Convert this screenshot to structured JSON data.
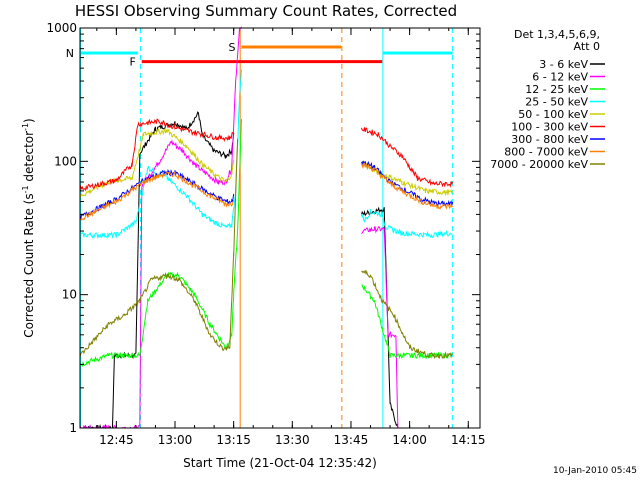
{
  "chart_data": {
    "type": "line",
    "title": "HESSI Observing Summary Count Rates, Corrected",
    "xlabel": "Start Time (21-Oct-04 12:35:42)",
    "ylabel_main": "Corrected Count Rate (s",
    "ylabel_sup1": "-1",
    "ylabel_mid": " detector",
    "ylabel_sup2": "-1",
    "ylabel_end": ")",
    "footer": "10-Jan-2010 05:45",
    "yscale": "log",
    "xlim": [
      "12:35:42",
      "14:18:00"
    ],
    "ylim": [
      1,
      1000
    ],
    "x_ticks": [
      {
        "t": "12:45",
        "label": "12:45"
      },
      {
        "t": "13:00",
        "label": "13:00"
      },
      {
        "t": "13:15",
        "label": "13:15"
      },
      {
        "t": "13:30",
        "label": "13:30"
      },
      {
        "t": "13:45",
        "label": "13:45"
      },
      {
        "t": "14:00",
        "label": "14:00"
      },
      {
        "t": "14:15",
        "label": "14:15"
      }
    ],
    "y_ticks": [
      {
        "v": 1,
        "label": "1"
      },
      {
        "v": 10,
        "label": "10"
      },
      {
        "v": 100,
        "label": "100"
      },
      {
        "v": 1000,
        "label": "1000"
      }
    ],
    "legend": {
      "header1": "Det 1,3,4,5,6,9,",
      "header2": "Att 0"
    },
    "series": [
      {
        "name": "3 - 6 keV",
        "color": "#000000",
        "segments": [
          [
            [
              "12:35:42",
              1
            ],
            [
              "12:44:00",
              1
            ],
            [
              "12:44:30",
              3.5
            ],
            [
              "12:50:00",
              3.5
            ],
            [
              "12:51:00",
              115
            ],
            [
              "12:55:00",
              175
            ],
            [
              "13:00:00",
              195
            ],
            [
              "13:03:00",
              175
            ],
            [
              "13:06:00",
              230
            ],
            [
              "13:07:00",
              155
            ],
            [
              "13:10:00",
              120
            ],
            [
              "13:13:00",
              110
            ],
            [
              "13:14:30",
              120
            ],
            [
              "13:15:00",
              160
            ]
          ],
          [
            [
              "13:47:40",
              40
            ],
            [
              "13:53:30",
              44
            ],
            [
              "13:54:00",
              15
            ],
            [
              "13:55:00",
              1.5
            ],
            [
              "13:57:00",
              1
            ]
          ]
        ]
      },
      {
        "name": "6 - 12 keV",
        "color": "#ff00ff",
        "segments": [
          [
            [
              "12:35:42",
              1
            ],
            [
              "12:51:00",
              1
            ],
            [
              "12:51:30",
              65
            ],
            [
              "12:56:00",
              100
            ],
            [
              "12:59:00",
              140
            ],
            [
              "13:02:00",
              120
            ],
            [
              "13:05:00",
              95
            ],
            [
              "13:07:00",
              85
            ],
            [
              "13:11:00",
              70
            ],
            [
              "13:13:00",
              70
            ],
            [
              "13:14:30",
              90
            ],
            [
              "13:15:30",
              400
            ],
            [
              "13:16:30",
              950
            ],
            [
              "13:17:00",
              1000
            ]
          ],
          [
            [
              "13:47:40",
              30
            ],
            [
              "13:51:00",
              31
            ],
            [
              "13:53:30",
              31
            ],
            [
              "13:54:30",
              5
            ],
            [
              "13:56:30",
              5
            ],
            [
              "13:57:00",
              1
            ]
          ]
        ]
      },
      {
        "name": "12 - 25 keV",
        "color": "#00ff00",
        "segments": [
          [
            [
              "12:35:42",
              3
            ],
            [
              "12:43:00",
              3.5
            ],
            [
              "12:47:00",
              3.5
            ],
            [
              "12:51:00",
              3.5
            ],
            [
              "12:53:00",
              9
            ],
            [
              "12:58:00",
              14
            ],
            [
              "13:01:00",
              14
            ],
            [
              "13:05:00",
              10
            ],
            [
              "13:09:00",
              6
            ],
            [
              "13:13:00",
              4
            ],
            [
              "13:14:30",
              5
            ],
            [
              "13:15:00",
              10
            ],
            [
              "13:16:00",
              30
            ],
            [
              "13:17:00",
              200
            ]
          ],
          [
            [
              "13:47:40",
              12
            ],
            [
              "13:51:00",
              9
            ],
            [
              "13:55:00",
              3.5
            ],
            [
              "14:11:00",
              3.5
            ]
          ]
        ]
      },
      {
        "name": "25 - 50 keV",
        "color": "#00ffff",
        "segments": [
          [
            [
              "12:35:42",
              28
            ],
            [
              "12:45:00",
              28
            ],
            [
              "12:50:00",
              35
            ],
            [
              "12:53:00",
              90
            ],
            [
              "12:58:00",
              75
            ],
            [
              "13:03:00",
              55
            ],
            [
              "13:07:00",
              40
            ],
            [
              "13:10:00",
              35
            ],
            [
              "13:13:00",
              32
            ],
            [
              "13:14:30",
              33
            ],
            [
              "13:15:30",
              60
            ],
            [
              "13:16:30",
              300
            ],
            [
              "13:17:00",
              500
            ]
          ],
          [
            [
              "13:47:40",
              40
            ],
            [
              "13:48:30",
              36
            ],
            [
              "13:50:00",
              42
            ],
            [
              "13:53:00",
              40
            ],
            [
              "13:54:00",
              32
            ],
            [
              "13:58:00",
              29
            ],
            [
              "14:05:00",
              28
            ],
            [
              "14:11:00",
              29
            ]
          ]
        ]
      },
      {
        "name": "50 - 100 keV",
        "color": "#cccc00",
        "segments": [
          [
            [
              "12:35:42",
              55
            ],
            [
              "12:43:00",
              70
            ],
            [
              "12:49:00",
              75
            ],
            [
              "12:52:00",
              160
            ],
            [
              "12:58:00",
              170
            ],
            [
              "13:03:00",
              130
            ],
            [
              "13:07:00",
              95
            ],
            [
              "13:10:00",
              80
            ],
            [
              "13:13:00",
              70
            ],
            [
              "13:14:30",
              80
            ],
            [
              "13:15:00",
              100
            ]
          ],
          [
            [
              "13:47:40",
              100
            ],
            [
              "13:51:00",
              85
            ],
            [
              "13:53:00",
              78
            ],
            [
              "13:54:00",
              78
            ],
            [
              "13:58:00",
              70
            ],
            [
              "14:04:00",
              60
            ],
            [
              "14:11:00",
              58
            ]
          ]
        ]
      },
      {
        "name": "100 - 300 keV",
        "color": "#ff0000",
        "segments": [
          [
            [
              "12:35:42",
              62
            ],
            [
              "12:45:00",
              72
            ],
            [
              "12:49:00",
              95
            ],
            [
              "12:50:30",
              190
            ],
            [
              "12:56:00",
              200
            ],
            [
              "12:59:00",
              185
            ],
            [
              "13:03:00",
              170
            ],
            [
              "13:07:00",
              160
            ],
            [
              "13:11:00",
              150
            ],
            [
              "13:14:00",
              150
            ],
            [
              "13:15:00",
              165
            ]
          ],
          [
            [
              "13:47:40",
              175
            ],
            [
              "13:52:00",
              160
            ],
            [
              "13:55:00",
              130
            ],
            [
              "13:58:00",
              110
            ],
            [
              "14:02:00",
              75
            ],
            [
              "14:06:00",
              68
            ],
            [
              "14:11:00",
              68
            ]
          ]
        ]
      },
      {
        "name": "300 - 800 keV",
        "color": "#0000ff",
        "segments": [
          [
            [
              "12:35:42",
              38
            ],
            [
              "12:45:00",
              52
            ],
            [
              "12:52:00",
              72
            ],
            [
              "12:57:00",
              82
            ],
            [
              "13:00:00",
              82
            ],
            [
              "13:04:00",
              70
            ],
            [
              "13:09:00",
              57
            ],
            [
              "13:13:00",
              50
            ],
            [
              "13:14:30",
              50
            ],
            [
              "13:15:00",
              55
            ]
          ],
          [
            [
              "13:47:40",
              100
            ],
            [
              "13:51:00",
              90
            ],
            [
              "13:55:00",
              70
            ],
            [
              "13:58:00",
              63
            ],
            [
              "14:03:00",
              52
            ],
            [
              "14:07:00",
              48
            ],
            [
              "14:11:00",
              48
            ]
          ]
        ]
      },
      {
        "name": "800 - 7000 keV",
        "color": "#ff8000",
        "segments": [
          [
            [
              "12:35:42",
              37
            ],
            [
              "12:45:00",
              50
            ],
            [
              "12:52:00",
              70
            ],
            [
              "12:57:00",
              80
            ],
            [
              "13:00:00",
              80
            ],
            [
              "13:04:00",
              68
            ],
            [
              "13:09:00",
              55
            ],
            [
              "13:13:00",
              48
            ],
            [
              "13:14:30",
              48
            ],
            [
              "13:15:00",
              53
            ]
          ],
          [
            [
              "13:47:40",
              95
            ],
            [
              "13:51:00",
              87
            ],
            [
              "13:55:00",
              68
            ],
            [
              "13:58:00",
              60
            ],
            [
              "14:03:00",
              50
            ],
            [
              "14:07:00",
              46
            ],
            [
              "14:11:00",
              46
            ]
          ]
        ]
      },
      {
        "name": "7000 - 20000 keV",
        "color": "#808000",
        "segments": [
          [
            [
              "12:35:42",
              3.5
            ],
            [
              "12:43:00",
              6
            ],
            [
              "12:47:00",
              7
            ],
            [
              "12:51:00",
              9
            ],
            [
              "12:54:00",
              13
            ],
            [
              "12:58:00",
              14
            ],
            [
              "13:01:00",
              13
            ],
            [
              "13:05:00",
              9
            ],
            [
              "13:09:00",
              5
            ],
            [
              "13:12:00",
              4
            ],
            [
              "13:14:00",
              4
            ],
            [
              "13:15:00",
              20
            ],
            [
              "13:16:00",
              150
            ]
          ],
          [
            [
              "13:47:40",
              15
            ],
            [
              "13:50:00",
              14
            ],
            [
              "13:53:00",
              9
            ],
            [
              "13:56:00",
              7
            ],
            [
              "14:00:00",
              4
            ],
            [
              "14:05:00",
              3.5
            ],
            [
              "14:11:00",
              3.5
            ]
          ]
        ]
      }
    ],
    "flags": [
      {
        "label": "N",
        "color": "#00ffff",
        "y": 650,
        "segments": [
          [
            "12:35:42",
            "12:50:30"
          ],
          [
            "13:53:10",
            "14:11:00"
          ]
        ]
      },
      {
        "label": "F",
        "color": "#ff0000",
        "y": 560,
        "segments": [
          [
            "12:51:30",
            "13:53:00"
          ]
        ]
      },
      {
        "label": "S",
        "color": "#ff8000",
        "y": 720,
        "segments": [
          [
            "13:17:00",
            "13:42:30"
          ]
        ]
      }
    ],
    "vlines": [
      {
        "t": "12:35:50",
        "color": "#00ffff",
        "style": "solid"
      },
      {
        "t": "12:51:10",
        "color": "#00ffff",
        "style": "dashed"
      },
      {
        "t": "13:16:40",
        "color": "#ff8000",
        "style": "solid"
      },
      {
        "t": "13:42:40",
        "color": "#ff8000",
        "style": "dashed"
      },
      {
        "t": "13:53:10",
        "color": "#00ffff",
        "style": "solid"
      },
      {
        "t": "14:11:00",
        "color": "#00ffff",
        "style": "dashed"
      }
    ]
  }
}
